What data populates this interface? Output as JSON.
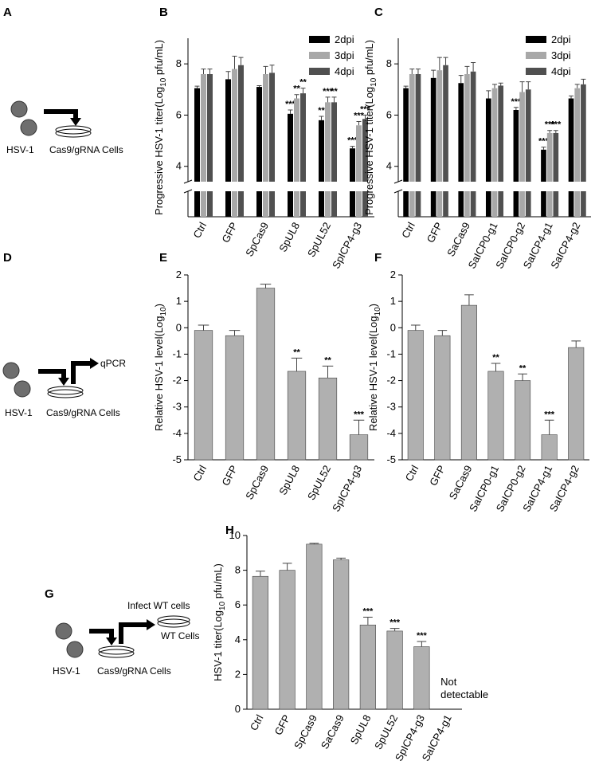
{
  "diagrams": [
    {
      "panel": "A",
      "virus": "HSV-1",
      "cells": "Cas9/gRNA Cells"
    },
    {
      "panel": "D",
      "virus": "HSV-1",
      "cells": "Cas9/gRNA Cells",
      "readout": "qPCR"
    },
    {
      "panel": "G",
      "virus": "HSV-1",
      "cells": "Cas9/gRNA Cells",
      "readout": "Infect WT cells",
      "target": "WT Cells"
    }
  ],
  "chart_data": [
    {
      "type": "bar",
      "panel": "B",
      "axis_break": true,
      "legend": "upper right",
      "y_label": {
        "text": "Progressive HSV-1 titer(Log",
        "sub": "10",
        "after": " pfu/mL)"
      },
      "categories": [
        "Ctrl",
        "GFP",
        "SpCas9",
        "SpUL8",
        "SpUL52",
        "SpICP4-g3"
      ],
      "ylim": [
        3.4,
        9
      ],
      "yticks": [
        4,
        6,
        8
      ],
      "series": [
        {
          "name": "2dpi",
          "color": "#000000",
          "values": [
            7.05,
            7.4,
            7.1,
            6.05,
            5.8,
            4.7
          ],
          "errors": [
            0.08,
            0.3,
            0.05,
            0.15,
            0.15,
            0.08
          ],
          "significance": [
            null,
            null,
            null,
            "***",
            "**",
            "***"
          ]
        },
        {
          "name": "3dpi",
          "color": "#a8a8a8",
          "values": [
            7.6,
            7.8,
            7.6,
            6.65,
            6.5,
            5.6
          ],
          "errors": [
            0.2,
            0.5,
            0.3,
            0.15,
            0.2,
            0.15
          ],
          "significance": [
            null,
            null,
            null,
            "**",
            "***",
            "***"
          ]
        },
        {
          "name": "4dpi",
          "color": "#505050",
          "values": [
            7.6,
            7.95,
            7.65,
            6.85,
            6.5,
            5.85
          ],
          "errors": [
            0.2,
            0.3,
            0.3,
            0.2,
            0.2,
            0.15
          ],
          "significance": [
            null,
            null,
            null,
            "**",
            "**",
            "***"
          ]
        }
      ]
    },
    {
      "type": "bar",
      "panel": "C",
      "axis_break": true,
      "legend": "upper right",
      "y_label": {
        "text": "Progressive HSV-1 titer(Log",
        "sub": "10",
        "after": " pfu/mL)"
      },
      "categories": [
        "Ctrl",
        "GFP",
        "SaCas9",
        "SaICP0-g1",
        "SaICP0-g2",
        "SaICP4-g1",
        "SaICP4-g2"
      ],
      "ylim": [
        3.4,
        9
      ],
      "yticks": [
        4,
        6,
        8
      ],
      "series": [
        {
          "name": "2dpi",
          "color": "#000000",
          "values": [
            7.05,
            7.45,
            7.25,
            6.65,
            6.2,
            4.65,
            6.65
          ],
          "errors": [
            0.08,
            0.3,
            0.3,
            0.3,
            0.1,
            0.1,
            0.1
          ],
          "significance": [
            null,
            null,
            null,
            null,
            "***",
            "***",
            null
          ]
        },
        {
          "name": "3dpi",
          "color": "#a8a8a8",
          "values": [
            7.6,
            7.75,
            7.6,
            7.05,
            6.9,
            5.3,
            7.05
          ],
          "errors": [
            0.2,
            0.5,
            0.3,
            0.15,
            0.4,
            0.1,
            0.15
          ],
          "significance": [
            null,
            null,
            null,
            null,
            null,
            "***",
            null
          ]
        },
        {
          "name": "4dpi",
          "color": "#505050",
          "values": [
            7.6,
            7.95,
            7.7,
            7.15,
            7.0,
            5.3,
            7.2
          ],
          "errors": [
            0.2,
            0.3,
            0.35,
            0.1,
            0.3,
            0.1,
            0.2
          ],
          "significance": [
            null,
            null,
            null,
            null,
            null,
            "***",
            null
          ]
        }
      ]
    },
    {
      "type": "bar",
      "panel": "E",
      "color": "#b0b0b0",
      "y_label": {
        "text": "Relative HSV-1 level(Log",
        "sub": "10",
        "after": ")"
      },
      "categories": [
        "Ctrl",
        "GFP",
        "SpCas9",
        "SpUL8",
        "SpUL52",
        "SpICP4-g3"
      ],
      "values": [
        -0.1,
        -0.3,
        1.5,
        -1.65,
        -1.9,
        -4.05
      ],
      "errors": [
        0.2,
        0.2,
        0.15,
        0.5,
        0.45,
        0.55
      ],
      "significance": [
        null,
        null,
        null,
        "**",
        "**",
        "***"
      ],
      "ylim": [
        -5,
        2
      ],
      "yticks": [
        -5,
        -4,
        -3,
        -2,
        -1,
        0,
        1,
        2
      ]
    },
    {
      "type": "bar",
      "panel": "F",
      "color": "#b0b0b0",
      "y_label": {
        "text": "Relative HSV-1 level(Log",
        "sub": "10",
        "after": ")"
      },
      "categories": [
        "Ctrl",
        "GFP",
        "SaCas9",
        "SaICP0-g1",
        "SaICP0-g2",
        "SaICP4-g1",
        "SaICP4-g2"
      ],
      "values": [
        -0.1,
        -0.3,
        0.85,
        -1.65,
        -2.0,
        -4.05,
        -0.75
      ],
      "errors": [
        0.2,
        0.2,
        0.4,
        0.3,
        0.25,
        0.55,
        0.25
      ],
      "significance": [
        null,
        null,
        null,
        "**",
        "**",
        "***",
        null
      ],
      "ylim": [
        -5,
        2
      ],
      "yticks": [
        -5,
        -4,
        -3,
        -2,
        -1,
        0,
        1,
        2
      ]
    },
    {
      "type": "bar",
      "panel": "H",
      "color": "#b0b0b0",
      "y_label": {
        "text": "HSV-1 titer(Log",
        "sub": "10",
        "after": " pfu/mL)"
      },
      "categories": [
        "Ctrl",
        "GFP",
        "SpCas9",
        "SaCas9",
        "SpUL8",
        "SpUL52",
        "SpICP4-g3",
        "SaICP4-g1"
      ],
      "values": [
        7.65,
        8.0,
        9.5,
        8.6,
        4.85,
        4.5,
        3.6,
        null
      ],
      "errors": [
        0.3,
        0.4,
        0.05,
        0.1,
        0.45,
        0.15,
        0.3,
        null
      ],
      "significance": [
        null,
        null,
        null,
        null,
        "***",
        "***",
        "***",
        null
      ],
      "annotation": "Not detectable",
      "ylim": [
        0,
        10
      ],
      "yticks": [
        0,
        2,
        4,
        6,
        8,
        10
      ]
    }
  ]
}
